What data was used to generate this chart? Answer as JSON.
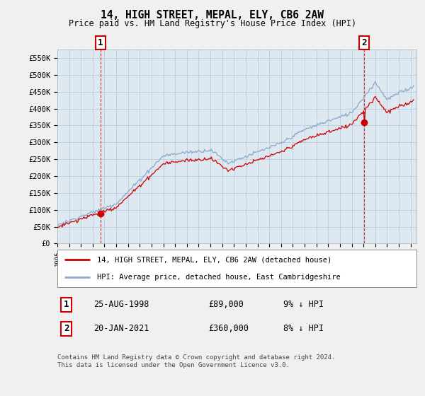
{
  "title": "14, HIGH STREET, MEPAL, ELY, CB6 2AW",
  "subtitle": "Price paid vs. HM Land Registry's House Price Index (HPI)",
  "legend_line1": "14, HIGH STREET, MEPAL, ELY, CB6 2AW (detached house)",
  "legend_line2": "HPI: Average price, detached house, East Cambridgeshire",
  "annotation1_label": "1",
  "annotation1_date": "25-AUG-1998",
  "annotation1_price": "£89,000",
  "annotation1_hpi": "9% ↓ HPI",
  "annotation2_label": "2",
  "annotation2_date": "20-JAN-2021",
  "annotation2_price": "£360,000",
  "annotation2_hpi": "8% ↓ HPI",
  "footer": "Contains HM Land Registry data © Crown copyright and database right 2024.\nThis data is licensed under the Open Government Licence v3.0.",
  "ylim": [
    0,
    575000
  ],
  "yticks": [
    0,
    50000,
    100000,
    150000,
    200000,
    250000,
    300000,
    350000,
    400000,
    450000,
    500000,
    550000
  ],
  "ytick_labels": [
    "£0",
    "£50K",
    "£100K",
    "£150K",
    "£200K",
    "£250K",
    "£300K",
    "£350K",
    "£400K",
    "£450K",
    "£500K",
    "£550K"
  ],
  "red_color": "#cc0000",
  "blue_color": "#88aacc",
  "bg_color": "#f0f0f0",
  "plot_bg_color": "#dde8f0",
  "grid_color": "#bbccdd",
  "point1_x": 1998.65,
  "point1_y": 89000,
  "point2_x": 2021.05,
  "point2_y": 360000,
  "vline1_x": 1998.65,
  "vline2_x": 2021.05,
  "xlim_left": 1995.0,
  "xlim_right": 2025.5
}
